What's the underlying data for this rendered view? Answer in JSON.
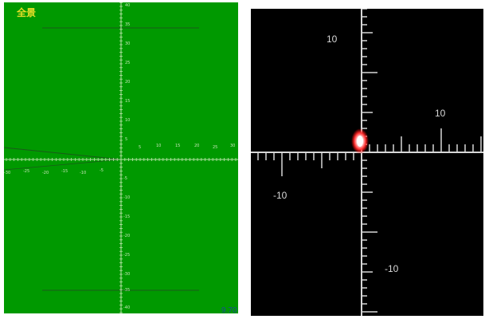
{
  "colors": {
    "left_background": "#009900",
    "left_axis": "#b9e4a8",
    "left_line": "#1b5a1b",
    "left_title": "#e6de28",
    "left_zoom": "#1b4b9a",
    "right_background": "#000000",
    "right_axis": "#d7d7d7",
    "target_glow": "#ff3030",
    "target_core": "#ffffff"
  },
  "left_panel": {
    "title": "全景",
    "zoom_value": "9.70",
    "y_tick_labels": [
      "40",
      "35",
      "30",
      "25",
      "20",
      "15",
      "10",
      "5",
      "-5",
      "-10",
      "-15",
      "-20",
      "-25",
      "-30",
      "-35",
      "-40"
    ],
    "x_tick_labels": [
      "5",
      "10",
      "15",
      "20",
      "25",
      "30",
      "-30",
      "-25",
      "-20",
      "-15",
      "-10",
      "-5"
    ]
  },
  "right_panel": {
    "label_y_positive": "10",
    "label_x_positive": "10",
    "label_x_negative": "-10",
    "label_y_negative": "-10"
  }
}
